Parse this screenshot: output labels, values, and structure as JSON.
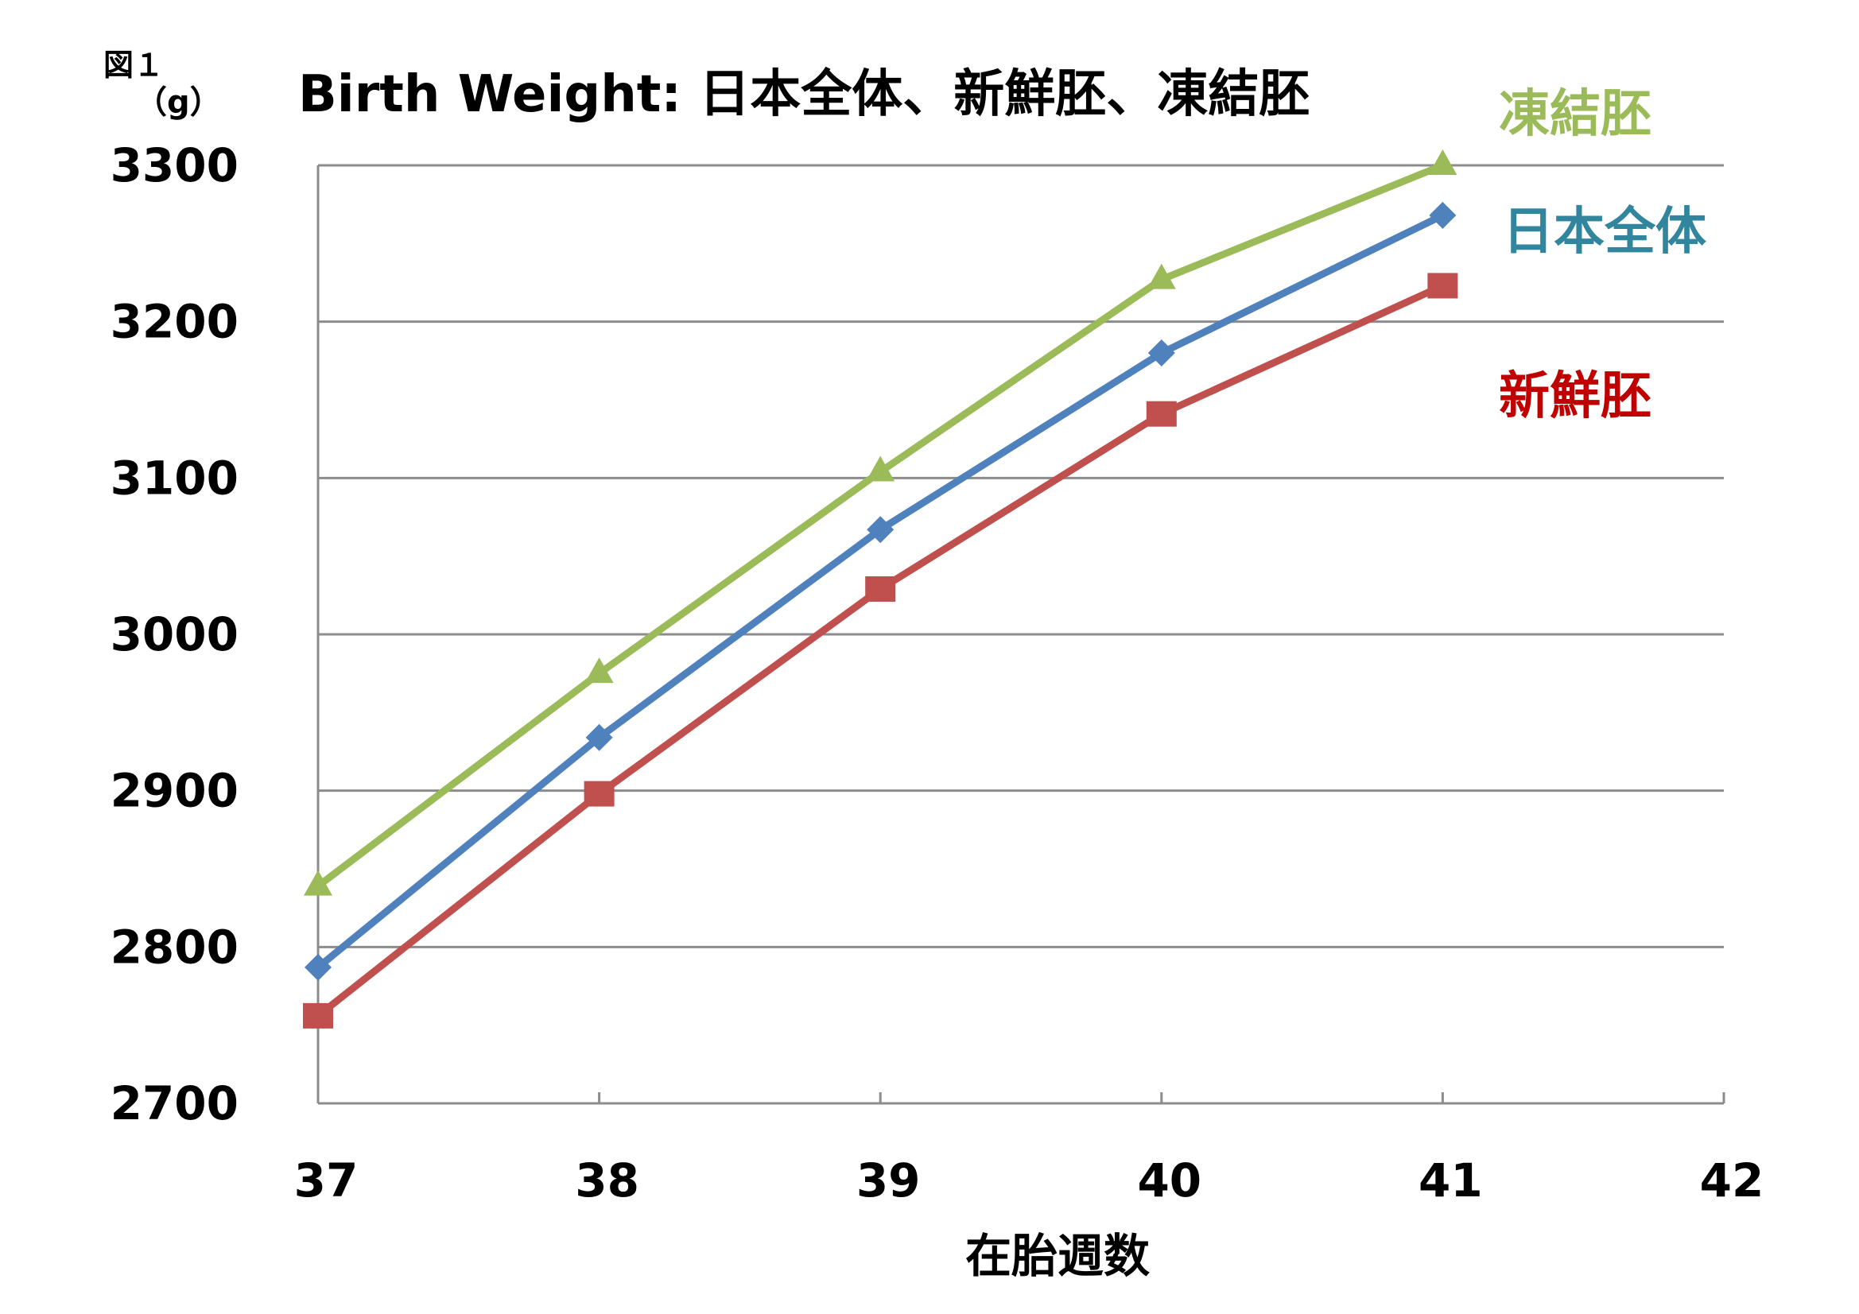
{
  "figure_label": "図１",
  "unit_label": "（g）",
  "chart_data": {
    "type": "line",
    "title": "Birth Weight:  日本全体、新鮮胚、凍結胚",
    "xlabel": "在胎週数",
    "ylabel": "（g）",
    "x": [
      37,
      38,
      39,
      40,
      41
    ],
    "xlim": [
      37,
      42
    ],
    "ylim": [
      2700,
      3300
    ],
    "x_ticks": [
      37,
      38,
      39,
      40,
      41,
      42
    ],
    "y_ticks": [
      2700,
      2800,
      2900,
      3000,
      3100,
      3200,
      3300
    ],
    "grid": "horizontal",
    "legend": "right side labels",
    "series": [
      {
        "name": "凍結胚",
        "color": "#9BBB59",
        "marker": "triangle",
        "values": [
          2839,
          2975,
          3104,
          3227,
          3300
        ]
      },
      {
        "name": "日本全体",
        "color": "#4F81BD",
        "label_color": "#31859C",
        "marker": "diamond",
        "values": [
          2787,
          2934,
          3067,
          3180,
          3268
        ]
      },
      {
        "name": "新鮮胚",
        "color": "#C0504D",
        "label_color": "#C00000",
        "marker": "square",
        "values": [
          2756,
          2898,
          3029,
          3141,
          3223
        ]
      }
    ]
  }
}
